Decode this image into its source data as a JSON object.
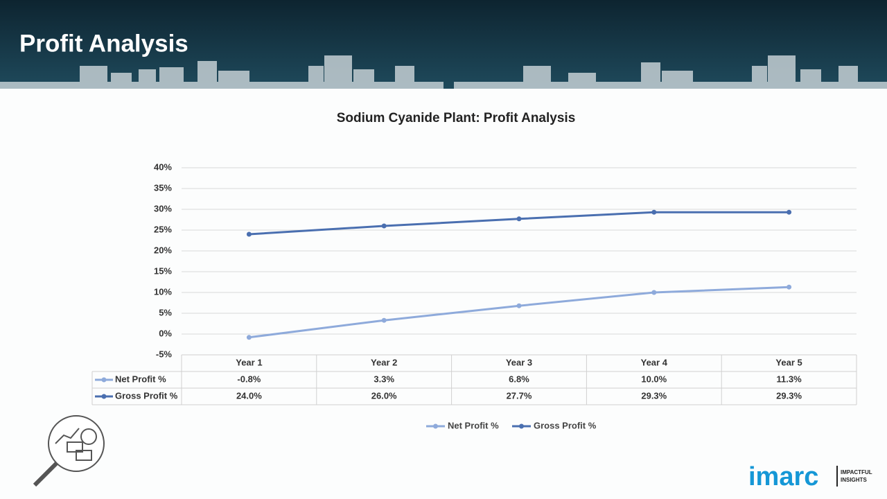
{
  "header": {
    "title": "Profit Analysis"
  },
  "chart_data": {
    "type": "line",
    "title": "Sodium Cyanide Plant: Profit Analysis",
    "categories": [
      "Year 1",
      "Year 2",
      "Year 3",
      "Year 4",
      "Year 5"
    ],
    "series": [
      {
        "name": "Net Profit %",
        "color": "#8eaadb",
        "values": [
          -0.8,
          3.3,
          6.8,
          10.0,
          11.3
        ],
        "value_labels": [
          "-0.8%",
          "3.3%",
          "6.8%",
          "10.0%",
          "11.3%"
        ]
      },
      {
        "name": "Gross Profit %",
        "color": "#4a6fb0",
        "values": [
          24.0,
          26.0,
          27.7,
          29.3,
          29.3
        ],
        "value_labels": [
          "24.0%",
          "26.0%",
          "27.7%",
          "29.3%",
          "29.3%"
        ]
      }
    ],
    "ylim": [
      -5,
      40
    ],
    "yticks": [
      {
        "value": -5,
        "label": "-5%"
      },
      {
        "value": 0,
        "label": "0%"
      },
      {
        "value": 5,
        "label": "5%"
      },
      {
        "value": 10,
        "label": "10%"
      },
      {
        "value": 15,
        "label": "15%"
      },
      {
        "value": 20,
        "label": "20%"
      },
      {
        "value": 25,
        "label": "25%"
      },
      {
        "value": 30,
        "label": "30%"
      },
      {
        "value": 35,
        "label": "35%"
      },
      {
        "value": 40,
        "label": "40%"
      }
    ],
    "grid": true,
    "legend": "bottom"
  },
  "logo": {
    "brand": "imarc",
    "tagline": [
      "IMPACTFUL",
      "INSIGHTS"
    ]
  }
}
